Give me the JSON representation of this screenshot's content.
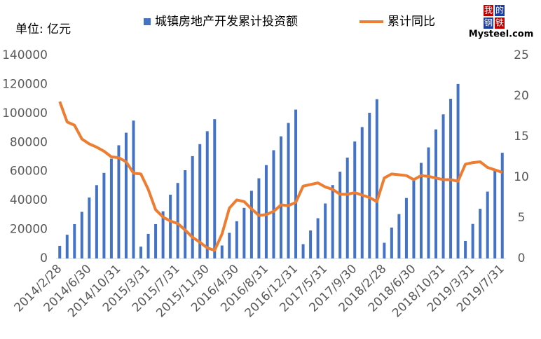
{
  "chart_data": {
    "type": "bar-line",
    "unit_label": "单位:  亿元",
    "logo": {
      "chars": [
        "我",
        "的",
        "钢",
        "铁"
      ],
      "text": "Mysteel.com"
    },
    "categories": [
      "2014/2/28",
      null,
      null,
      null,
      "2014/6/30",
      null,
      null,
      null,
      "2014/10/31",
      null,
      null,
      null,
      "2015/3/31",
      null,
      null,
      null,
      "2015/7/31",
      null,
      null,
      null,
      "2015/11/30",
      null,
      null,
      null,
      "2016/4/30",
      null,
      null,
      null,
      "2016/8/31",
      null,
      null,
      null,
      "2016/12/31",
      null,
      null,
      null,
      "2017/5/31",
      null,
      null,
      null,
      "2017/9/30",
      null,
      null,
      null,
      "2018/2/28",
      null,
      null,
      null,
      "2018/6/30",
      null,
      null,
      null,
      "2018/10/31",
      null,
      null,
      null,
      "2019/3/31",
      null,
      null,
      null,
      "2019/7/31"
    ],
    "series": [
      {
        "name": "城镇房地产开发累计投资额",
        "type": "bar",
        "color": "#4472c4",
        "axis": "y",
        "values": [
          8706,
          16339,
          23669,
          32131,
          42019,
          50534,
          58991,
          68751,
          78007,
          86651,
          95036,
          8166,
          16941,
          23679,
          32515,
          43955,
          52041,
          60831,
          70535,
          78801,
          87702,
          95979,
          8932,
          17677,
          25664,
          34853,
          46631,
          55260,
          64332,
          74598,
          84173,
          93387,
          102581,
          9854,
          19292,
          27732,
          37902,
          50610,
          59761,
          69494,
          80644,
          90544,
          100387,
          109799,
          10828,
          21291,
          30592,
          41675,
          55531,
          65879,
          76519,
          88948,
          99325,
          110083,
          120264,
          12090,
          23803,
          34217,
          46075,
          61609,
          72843
        ]
      },
      {
        "name": "累计同比",
        "type": "line",
        "color": "#ed7d31",
        "axis": "y2",
        "values": [
          19.3,
          16.8,
          16.4,
          14.7,
          14.1,
          13.7,
          13.2,
          12.5,
          12.4,
          11.9,
          10.5,
          10.4,
          8.5,
          6.0,
          5.1,
          4.6,
          4.3,
          3.5,
          2.6,
          2.0,
          1.3,
          1.0,
          3.0,
          6.2,
          7.2,
          7.0,
          6.1,
          5.3,
          5.4,
          5.8,
          6.6,
          6.5,
          6.9,
          8.9,
          9.1,
          9.3,
          8.8,
          8.5,
          7.9,
          7.9,
          8.1,
          7.8,
          7.5,
          7.0,
          9.9,
          10.4,
          10.3,
          10.2,
          9.7,
          10.2,
          10.1,
          9.9,
          9.7,
          9.7,
          9.5,
          11.6,
          11.8,
          11.9,
          11.2,
          10.9,
          10.6
        ]
      }
    ],
    "ylim": [
      0,
      140000
    ],
    "yticks": [
      0,
      20000,
      40000,
      60000,
      80000,
      100000,
      120000,
      140000
    ],
    "y2lim": [
      0,
      25
    ],
    "y2ticks": [
      0,
      5,
      10,
      15,
      20,
      25
    ],
    "grid": false
  }
}
